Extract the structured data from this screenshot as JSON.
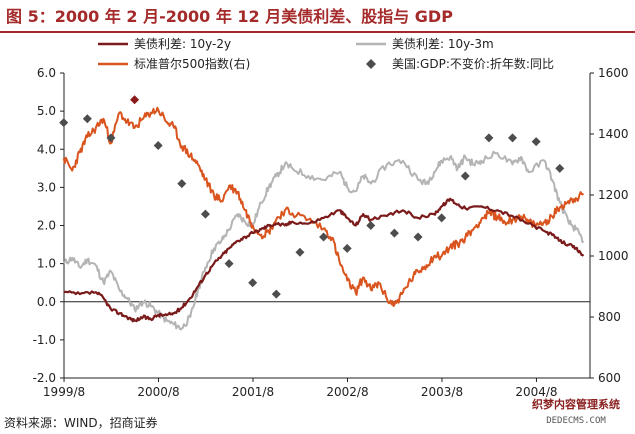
{
  "title": "图 5：2000 年 2 月-2000 年 12 月美债利差、股指与 GDP",
  "source": "资料来源：WIND，招商证券",
  "watermark": {
    "line1": "织梦内容管理系统",
    "line2": "DEDECMS.COM"
  },
  "colors": {
    "title": "#a52a2a",
    "spread_10y2y": "#7a1a1a",
    "spread_10y3m": "#b4b4b4",
    "sp500": "#d9541e",
    "gdp": "#4d4d4d",
    "gdp_highlight": "#8b1a1a"
  },
  "chart_data": {
    "type": "line",
    "x_ticks": [
      "1999/8",
      "2000/8",
      "2001/8",
      "2002/8",
      "2003/8",
      "2004/8"
    ],
    "y_left": {
      "ticks": [
        "-2.0",
        "-1.0",
        "0.0",
        "1.0",
        "2.0",
        "3.0",
        "4.0",
        "5.0",
        "6.0"
      ],
      "range": [
        -2,
        6
      ]
    },
    "y_right": {
      "ticks": [
        "600",
        "800",
        "1000",
        "1200",
        "1400",
        "1600"
      ],
      "range": [
        600,
        1600
      ]
    },
    "legend": {
      "spread_10y2y": "美债利差:  10y-2y",
      "spread_10y3m": "美债利差:  10y-3m",
      "sp500": "标准普尔500指数(右)",
      "gdp": "美国:GDP:不变价:折年数:同比"
    },
    "series": [
      {
        "name": "美债利差:  10y-2y",
        "axis": "left",
        "x": [
          1999.58,
          1999.75,
          1999.92,
          2000.0,
          2000.08,
          2000.17,
          2000.25,
          2000.33,
          2000.42,
          2000.5,
          2000.58,
          2000.67,
          2000.75,
          2000.83,
          2000.92,
          2001.0,
          2001.08,
          2001.17,
          2001.25,
          2001.33,
          2001.42,
          2001.5,
          2001.58,
          2001.67,
          2001.75,
          2001.83,
          2001.92,
          2002.0,
          2002.17,
          2002.33,
          2002.5,
          2002.58,
          2002.67,
          2002.75,
          2002.83,
          2003.0,
          2003.17,
          2003.33,
          2003.5,
          2003.58,
          2003.67,
          2003.75,
          2003.83,
          2004.0,
          2004.17,
          2004.33,
          2004.5,
          2004.67,
          2004.75,
          2004.83,
          2004.92,
          2005.0,
          2005.08
        ],
        "y": [
          0.25,
          0.2,
          0.25,
          0.1,
          -0.2,
          -0.3,
          -0.4,
          -0.5,
          -0.4,
          -0.45,
          -0.35,
          -0.35,
          -0.3,
          -0.15,
          0.1,
          0.4,
          0.7,
          1.0,
          1.2,
          1.4,
          1.6,
          1.7,
          1.8,
          1.9,
          2.0,
          2.05,
          2.0,
          2.1,
          2.05,
          2.2,
          2.4,
          2.2,
          2.0,
          2.3,
          2.15,
          2.25,
          2.4,
          2.2,
          2.3,
          2.5,
          2.7,
          2.55,
          2.45,
          2.5,
          2.4,
          2.25,
          2.05,
          1.85,
          1.75,
          1.6,
          1.5,
          1.4,
          1.2
        ]
      },
      {
        "name": "美债利差:  10y-3m",
        "axis": "left",
        "x": [
          1999.58,
          1999.67,
          1999.75,
          1999.83,
          1999.92,
          2000.0,
          2000.08,
          2000.17,
          2000.25,
          2000.33,
          2000.42,
          2000.5,
          2000.58,
          2000.67,
          2000.75,
          2000.83,
          2000.92,
          2001.0,
          2001.08,
          2001.17,
          2001.25,
          2001.33,
          2001.42,
          2001.5,
          2001.58,
          2001.67,
          2001.75,
          2001.83,
          2001.92,
          2002.0,
          2002.17,
          2002.33,
          2002.5,
          2002.58,
          2002.67,
          2002.75,
          2002.83,
          2003.0,
          2003.17,
          2003.33,
          2003.42,
          2003.5,
          2003.58,
          2003.67,
          2003.75,
          2003.83,
          2003.92,
          2004.0,
          2004.17,
          2004.33,
          2004.42,
          2004.5,
          2004.67,
          2004.75,
          2004.83,
          2004.92,
          2005.0,
          2005.08
        ],
        "y": [
          1.0,
          1.15,
          0.9,
          1.1,
          0.95,
          0.5,
          0.8,
          0.3,
          0.1,
          -0.2,
          0.0,
          -0.1,
          -0.3,
          -0.5,
          -0.6,
          -0.7,
          -0.4,
          0.3,
          0.9,
          1.4,
          1.6,
          1.9,
          2.3,
          2.1,
          2.0,
          2.6,
          3.0,
          3.3,
          3.6,
          3.5,
          3.3,
          3.2,
          3.4,
          3.0,
          2.9,
          3.3,
          3.1,
          3.6,
          3.7,
          3.2,
          3.1,
          3.4,
          3.7,
          3.8,
          3.5,
          3.8,
          3.6,
          3.7,
          3.9,
          3.6,
          3.8,
          3.4,
          3.7,
          3.2,
          2.6,
          2.1,
          1.9,
          1.6
        ]
      },
      {
        "name": "标准普尔500指数(右)",
        "axis": "right",
        "x": [
          1999.58,
          1999.67,
          1999.75,
          1999.83,
          1999.92,
          2000.0,
          2000.08,
          2000.17,
          2000.25,
          2000.33,
          2000.42,
          2000.5,
          2000.58,
          2000.67,
          2000.75,
          2000.83,
          2000.92,
          2001.0,
          2001.08,
          2001.17,
          2001.25,
          2001.33,
          2001.42,
          2001.5,
          2001.58,
          2001.67,
          2001.75,
          2001.83,
          2001.92,
          2002.0,
          2002.17,
          2002.33,
          2002.42,
          2002.5,
          2002.58,
          2002.67,
          2002.75,
          2002.83,
          2002.92,
          2003.0,
          2003.08,
          2003.17,
          2003.25,
          2003.33,
          2003.42,
          2003.5,
          2003.58,
          2003.67,
          2003.75,
          2003.83,
          2003.92,
          2004.0,
          2004.08,
          2004.17,
          2004.25,
          2004.33,
          2004.42,
          2004.5,
          2004.58,
          2004.67,
          2004.75,
          2004.83,
          2004.92,
          2005.0,
          2005.08
        ],
        "y": [
          1320,
          1280,
          1340,
          1390,
          1420,
          1450,
          1370,
          1470,
          1440,
          1420,
          1450,
          1470,
          1480,
          1440,
          1420,
          1360,
          1330,
          1300,
          1250,
          1200,
          1180,
          1230,
          1210,
          1150,
          1100,
          1070,
          1080,
          1120,
          1150,
          1140,
          1120,
          1090,
          1060,
          980,
          920,
          880,
          930,
          890,
          910,
          860,
          840,
          880,
          920,
          950,
          970,
          1000,
          1000,
          1030,
          1040,
          1060,
          1090,
          1120,
          1140,
          1130,
          1110,
          1120,
          1130,
          1110,
          1100,
          1110,
          1130,
          1160,
          1180,
          1190,
          1200
        ]
      },
      {
        "name": "美国:GDP:不变价:折年数:同比",
        "axis": "left",
        "kind": "scatter",
        "x": [
          1999.58,
          1999.83,
          2000.08,
          2000.33,
          2000.58,
          2000.83,
          2001.08,
          2001.33,
          2001.58,
          2001.83,
          2002.08,
          2002.33,
          2002.58,
          2002.83,
          2003.08,
          2003.33,
          2003.58,
          2003.83,
          2004.08,
          2004.33,
          2004.58,
          2004.83
        ],
        "y": [
          4.7,
          4.8,
          4.3,
          5.3,
          4.1,
          3.1,
          2.3,
          1.0,
          0.5,
          0.2,
          1.3,
          1.7,
          1.4,
          2.0,
          1.8,
          1.7,
          2.2,
          3.3,
          4.3,
          4.3,
          4.2,
          3.5
        ],
        "highlight_index": 3
      }
    ]
  }
}
